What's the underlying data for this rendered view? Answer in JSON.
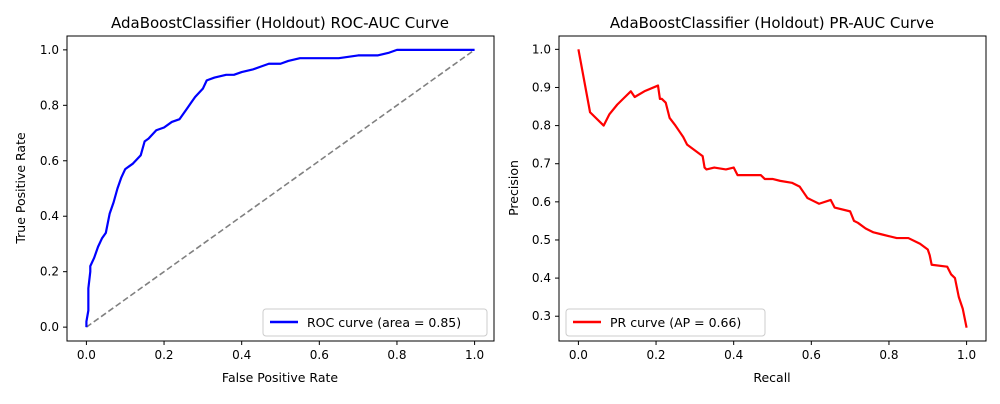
{
  "chart_data": [
    {
      "type": "line",
      "title": "AdaBoostClassifier (Holdout) ROC-AUC Curve",
      "xlabel": "False Positive Rate",
      "ylabel": "True Positive Rate",
      "xlim": [
        -0.05,
        1.05
      ],
      "ylim": [
        -0.05,
        1.05
      ],
      "xticks": [
        "0.0",
        "0.2",
        "0.4",
        "0.6",
        "0.8",
        "1.0"
      ],
      "yticks": [
        "0.0",
        "0.2",
        "0.4",
        "0.6",
        "0.8",
        "1.0"
      ],
      "grid": false,
      "legend_position": "lower right",
      "series": [
        {
          "name": "ROC curve (area = 0.85)",
          "color": "#0000ff",
          "style": "solid",
          "x": [
            0.0,
            0.0,
            0.005,
            0.005,
            0.01,
            0.01,
            0.02,
            0.03,
            0.04,
            0.05,
            0.06,
            0.07,
            0.08,
            0.09,
            0.1,
            0.11,
            0.12,
            0.14,
            0.15,
            0.16,
            0.18,
            0.2,
            0.22,
            0.24,
            0.26,
            0.27,
            0.28,
            0.3,
            0.31,
            0.33,
            0.36,
            0.38,
            0.4,
            0.43,
            0.45,
            0.47,
            0.5,
            0.52,
            0.55,
            0.6,
            0.65,
            0.7,
            0.75,
            0.78,
            0.8,
            0.85,
            0.9,
            1.0
          ],
          "y": [
            0.0,
            0.02,
            0.06,
            0.14,
            0.2,
            0.22,
            0.25,
            0.29,
            0.32,
            0.34,
            0.41,
            0.45,
            0.5,
            0.54,
            0.57,
            0.58,
            0.59,
            0.62,
            0.67,
            0.68,
            0.71,
            0.72,
            0.74,
            0.75,
            0.79,
            0.81,
            0.83,
            0.86,
            0.89,
            0.9,
            0.91,
            0.91,
            0.92,
            0.93,
            0.94,
            0.95,
            0.95,
            0.96,
            0.97,
            0.97,
            0.97,
            0.98,
            0.98,
            0.99,
            1.0,
            1.0,
            1.0,
            1.0
          ]
        },
        {
          "name": "",
          "color": "#808080",
          "style": "dashed",
          "x": [
            0.0,
            1.0
          ],
          "y": [
            0.0,
            1.0
          ]
        }
      ]
    },
    {
      "type": "line",
      "title": "AdaBoostClassifier (Holdout) PR-AUC Curve",
      "xlabel": "Recall",
      "ylabel": "Precision",
      "xlim": [
        -0.05,
        1.05
      ],
      "ylim": [
        0.235,
        1.035
      ],
      "xticks": [
        "0.0",
        "0.2",
        "0.4",
        "0.6",
        "0.8",
        "1.0"
      ],
      "yticks": [
        "0.3",
        "0.4",
        "0.5",
        "0.6",
        "0.7",
        "0.8",
        "0.9",
        "1.0"
      ],
      "grid": false,
      "legend_position": "lower left",
      "series": [
        {
          "name": "PR curve (AP = 0.66)",
          "color": "#ff0000",
          "style": "solid",
          "x": [
            0.0,
            0.03,
            0.065,
            0.08,
            0.1,
            0.12,
            0.135,
            0.145,
            0.17,
            0.205,
            0.21,
            0.215,
            0.225,
            0.23,
            0.235,
            0.25,
            0.26,
            0.27,
            0.28,
            0.32,
            0.325,
            0.33,
            0.35,
            0.38,
            0.4,
            0.41,
            0.45,
            0.47,
            0.48,
            0.5,
            0.52,
            0.55,
            0.57,
            0.58,
            0.59,
            0.6,
            0.62,
            0.65,
            0.66,
            0.7,
            0.71,
            0.72,
            0.74,
            0.76,
            0.78,
            0.8,
            0.82,
            0.85,
            0.88,
            0.9,
            0.905,
            0.91,
            0.95,
            0.96,
            0.97,
            0.98,
            0.99,
            1.0
          ],
          "y": [
            1.0,
            0.835,
            0.8,
            0.83,
            0.855,
            0.875,
            0.89,
            0.875,
            0.89,
            0.905,
            0.87,
            0.87,
            0.86,
            0.84,
            0.82,
            0.8,
            0.785,
            0.77,
            0.75,
            0.72,
            0.69,
            0.685,
            0.69,
            0.685,
            0.69,
            0.67,
            0.67,
            0.67,
            0.66,
            0.66,
            0.655,
            0.65,
            0.64,
            0.625,
            0.61,
            0.605,
            0.595,
            0.605,
            0.585,
            0.575,
            0.55,
            0.545,
            0.53,
            0.52,
            0.515,
            0.51,
            0.505,
            0.505,
            0.49,
            0.475,
            0.46,
            0.435,
            0.43,
            0.41,
            0.4,
            0.35,
            0.32,
            0.27
          ]
        }
      ]
    }
  ]
}
